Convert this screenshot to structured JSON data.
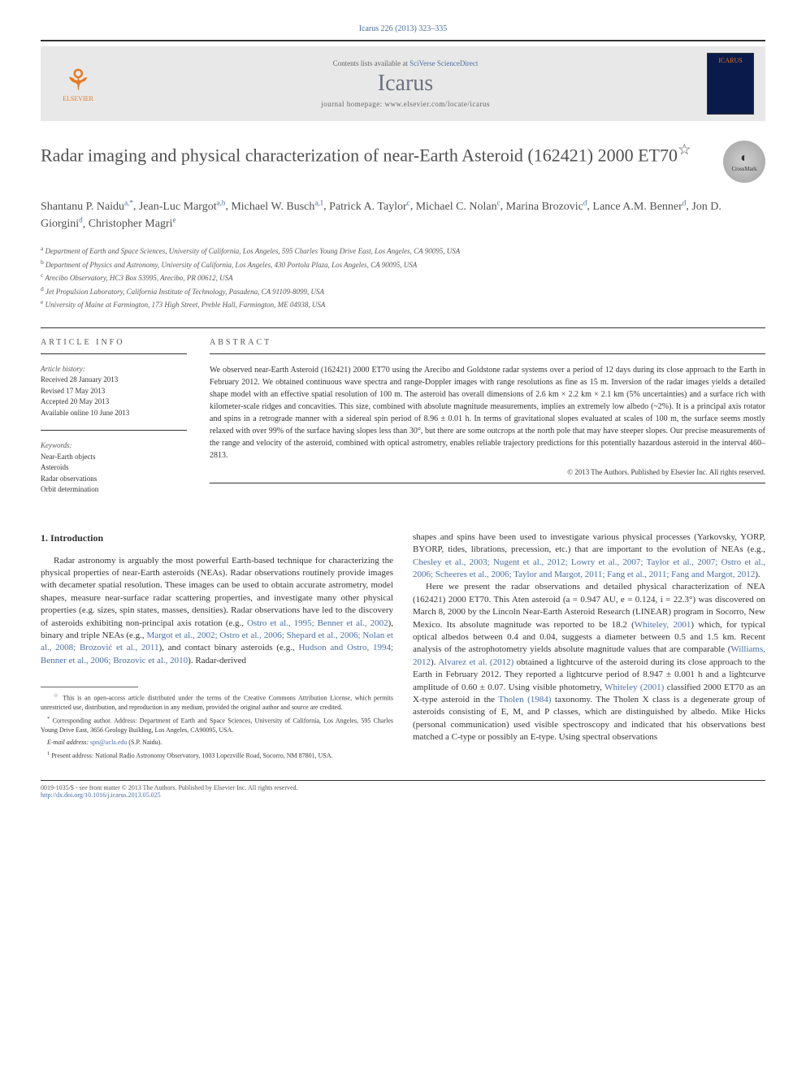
{
  "journal_ref": "Icarus 226 (2013) 323–335",
  "header": {
    "contents_text": "Contents lists available at",
    "contents_link": "SciVerse ScienceDirect",
    "journal_name": "Icarus",
    "homepage_label": "journal homepage: www.elsevier.com/locate/icarus",
    "publisher": "ELSEVIER",
    "cover_label": "ICARUS"
  },
  "crossmark_label": "CrossMark",
  "title": "Radar imaging and physical characterization of near-Earth Asteroid (162421) 2000 ET70",
  "title_star": "☆",
  "authors": [
    {
      "name": "Shantanu P. Naidu",
      "marks": "a,*"
    },
    {
      "name": "Jean-Luc Margot",
      "marks": "a,b"
    },
    {
      "name": "Michael W. Busch",
      "marks": "a,1"
    },
    {
      "name": "Patrick A. Taylor",
      "marks": "c"
    },
    {
      "name": "Michael C. Nolan",
      "marks": "c"
    },
    {
      "name": "Marina Brozovic",
      "marks": "d"
    },
    {
      "name": "Lance A.M. Benner",
      "marks": "d"
    },
    {
      "name": "Jon D. Giorgini",
      "marks": "d"
    },
    {
      "name": "Christopher Magri",
      "marks": "e"
    }
  ],
  "affiliations": [
    {
      "mark": "a",
      "text": "Department of Earth and Space Sciences, University of California, Los Angeles, 595 Charles Young Drive East, Los Angeles, CA 90095, USA"
    },
    {
      "mark": "b",
      "text": "Department of Physics and Astronomy, University of California, Los Angeles, 430 Portola Plaza, Los Angeles, CA 90095, USA"
    },
    {
      "mark": "c",
      "text": "Arecibo Observatory, HC3 Box 53995, Arecibo, PR 00612, USA"
    },
    {
      "mark": "d",
      "text": "Jet Propulsion Laboratory, California Institute of Technology, Pasadena, CA 91109-8099, USA"
    },
    {
      "mark": "e",
      "text": "University of Maine at Farmington, 173 High Street, Preble Hall, Farmington, ME 04938, USA"
    }
  ],
  "article_info": {
    "heading": "ARTICLE INFO",
    "history_label": "Article history:",
    "history": [
      "Received 28 January 2013",
      "Revised 17 May 2013",
      "Accepted 20 May 2013",
      "Available online 10 June 2013"
    ],
    "keywords_label": "Keywords:",
    "keywords": [
      "Near-Earth objects",
      "Asteroids",
      "Radar observations",
      "Orbit determination"
    ]
  },
  "abstract": {
    "heading": "ABSTRACT",
    "text": "We observed near-Earth Asteroid (162421) 2000 ET70 using the Arecibo and Goldstone radar systems over a period of 12 days during its close approach to the Earth in February 2012. We obtained continuous wave spectra and range-Doppler images with range resolutions as fine as 15 m. Inversion of the radar images yields a detailed shape model with an effective spatial resolution of 100 m. The asteroid has overall dimensions of 2.6 km × 2.2 km × 2.1 km (5% uncertainties) and a surface rich with kilometer-scale ridges and concavities. This size, combined with absolute magnitude measurements, implies an extremely low albedo (~2%). It is a principal axis rotator and spins in a retrograde manner with a sidereal spin period of 8.96 ± 0.01 h. In terms of gravitational slopes evaluated at scales of 100 m, the surface seems mostly relaxed with over 99% of the surface having slopes less than 30°, but there are some outcrops at the north pole that may have steeper slopes. Our precise measurements of the range and velocity of the asteroid, combined with optical astrometry, enables reliable trajectory predictions for this potentially hazardous asteroid in the interval 460–2813.",
    "copyright": "© 2013 The Authors. Published by Elsevier Inc. All rights reserved."
  },
  "intro": {
    "heading": "1. Introduction",
    "para1_pre": "Radar astronomy is arguably the most powerful Earth-based technique for characterizing the physical properties of near-Earth asteroids (NEAs). Radar observations routinely provide images with decameter spatial resolution. These images can be used to obtain accurate astrometry, model shapes, measure near-surface radar scattering properties, and investigate many other physical properties (e.g. sizes, spin states, masses, densities). Radar observations have led to the discovery of asteroids exhibiting non-principal axis rotation (e.g., ",
    "cite1": "Ostro et al., 1995; Benner et al., 2002",
    "para1_mid1": "), binary and triple NEAs (e.g., ",
    "cite2": "Margot et al., 2002; Ostro et al., 2006; Shepard et al., 2006; Nolan et al., 2008; Brozović et al., 2011",
    "para1_mid2": "), and contact binary asteroids (e.g., ",
    "cite3": "Hudson and Ostro, 1994; Benner et al., 2006; Brozovic et al., 2010",
    "para1_end": "). Radar-derived",
    "para2_pre": "shapes and spins have been used to investigate various physical processes (Yarkovsky, YORP, BYORP, tides, librations, precession, etc.) that are important to the evolution of NEAs (e.g., ",
    "cite4": "Chesley et al., 2003; Nugent et al., 2012; Lowry et al., 2007; Taylor et al., 2007; Ostro et al., 2006; Scheeres et al., 2006; Taylor and Margot, 2011; Fang et al., 2011; Fang and Margot, 2012",
    "para2_end": ").",
    "para3_pre": "Here we present the radar observations and detailed physical characterization of NEA (162421) 2000 ET70. This Aten asteroid (a = 0.947 AU, e = 0.124, i = 22.3°) was discovered on March 8, 2000 by the Lincoln Near-Earth Asteroid Research (LINEAR) program in Socorro, New Mexico. Its absolute magnitude was reported to be 18.2 (",
    "cite5": "Whiteley, 2001",
    "para3_mid1": ") which, for typical optical albedos between 0.4 and 0.04, suggests a diameter between 0.5 and 1.5 km. Recent analysis of the astrophotometry yields absolute magnitude values that are comparable (",
    "cite6": "Williams, 2012",
    "para3_mid2": "). ",
    "cite7": "Alvarez et al. (2012)",
    "para3_mid3": " obtained a lightcurve of the asteroid during its close approach to the Earth in February 2012. They reported a lightcurve period of 8.947 ± 0.001 h and a lightcurve amplitude of 0.60 ± 0.07. Using visible photometry, ",
    "cite8": "Whiteley (2001)",
    "para3_mid4": " classified 2000 ET70 as an X-type asteroid in the ",
    "cite9": "Tholen (1984)",
    "para3_end": " taxonomy. The Tholen X class is a degenerate group of asteroids consisting of E, M, and P classes, which are distinguished by albedo. Mike Hicks (personal communication) used visible spectroscopy and indicated that his observations best matched a C-type or possibly an E-type. Using spectral observations"
  },
  "footnotes": {
    "star": "This is an open-access article distributed under the terms of the Creative Commons Attribution License, which permits unrestricted use, distribution, and reproduction in any medium, provided the original author and source are credited.",
    "corr": "Corresponding author. Address: Department of Earth and Space Sciences, University of California, Los Angeles, 595 Charles Young Drive East, 3656 Geology Building, Los Angeles, CA90095, USA.",
    "email_label": "E-mail address:",
    "email": "spn@ucla.edu",
    "email_author": "(S.P. Naidu).",
    "present": "Present address: National Radio Astronomy Observatory, 1003 Lopezville Road, Socorro, NM 87801, USA."
  },
  "footer": {
    "line1": "0019-1035/$ - see front matter © 2013 The Authors. Published by Elsevier Inc. All rights reserved.",
    "doi": "http://dx.doi.org/10.1016/j.icarus.2013.05.025"
  },
  "colors": {
    "link": "#4a6fa5",
    "elsevier_orange": "#e87722",
    "text": "#333333",
    "heading_gray": "#505050",
    "bg_header": "#e8e8e8"
  }
}
